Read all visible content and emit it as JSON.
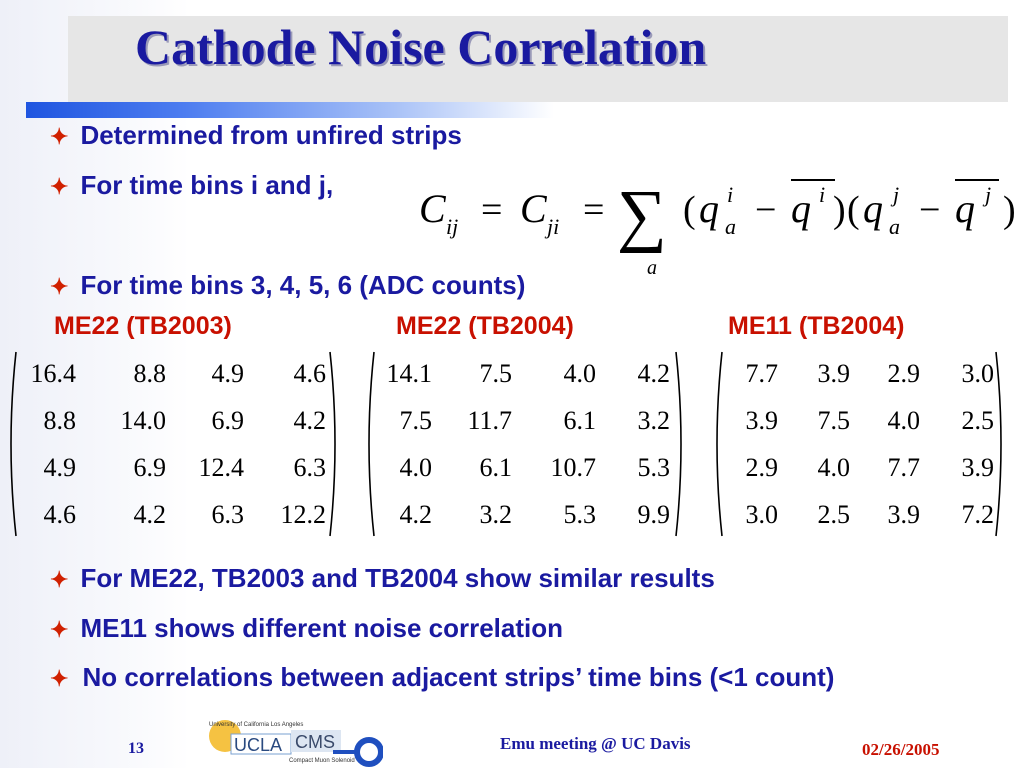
{
  "slide": {
    "title": "Cathode Noise Correlation",
    "bullets": [
      "Determined from unfired strips",
      "For time bins i and j,",
      "For time bins 3, 4, 5, 6 (ADC counts)"
    ],
    "formula": {
      "C": "C",
      "sub_ij": "ij",
      "sub_ji": "ji",
      "eq": "=",
      "sum": "∑",
      "sum_sub": "a",
      "lparen": "(",
      "rparen": ")",
      "q": "q",
      "sup_i": "i",
      "sup_j": "j",
      "sub_a": "a",
      "minus": "−"
    },
    "matrices": [
      {
        "label": "ME22 (TB2003)",
        "rows": [
          [
            "16.4",
            "8.8",
            "4.9",
            "4.6"
          ],
          [
            "8.8",
            "14.0",
            "6.9",
            "4.2"
          ],
          [
            "4.9",
            "6.9",
            "12.4",
            "6.3"
          ],
          [
            "4.6",
            "4.2",
            "6.3",
            "12.2"
          ]
        ]
      },
      {
        "label": "ME22 (TB2004)",
        "rows": [
          [
            "14.1",
            "7.5",
            "4.0",
            "4.2"
          ],
          [
            "7.5",
            "11.7",
            "6.1",
            "3.2"
          ],
          [
            "4.0",
            "6.1",
            "10.7",
            "5.3"
          ],
          [
            "4.2",
            "3.2",
            "5.3",
            "9.9"
          ]
        ]
      },
      {
        "label": "ME11 (TB2004)",
        "rows": [
          [
            "7.7",
            "3.9",
            "2.9",
            "3.0"
          ],
          [
            "3.9",
            "7.5",
            "4.0",
            "2.5"
          ],
          [
            "2.9",
            "4.0",
            "7.7",
            "3.9"
          ],
          [
            "3.0",
            "2.5",
            "3.9",
            "7.2"
          ]
        ]
      }
    ],
    "conclusions": [
      "For ME22, TB2003 and TB2004 show similar results",
      "ME11 shows different noise correlation",
      "No correlations between adjacent strips’ time bins (<1 count)"
    ],
    "bullet_mark": "✦"
  },
  "footer": {
    "slide_number": "13",
    "center": "Emu meeting @ UC Davis",
    "date": "02/26/2005",
    "logo_top_text": "University of California Los Angeles",
    "logo_ucla": "UCLA",
    "logo_cms": "CMS",
    "logo_cms_sub": "Compact Muon Solenoid"
  },
  "colors": {
    "title": "#1a1aa0",
    "bullet_mark": "#d02000",
    "matrix_label": "#c81000"
  }
}
